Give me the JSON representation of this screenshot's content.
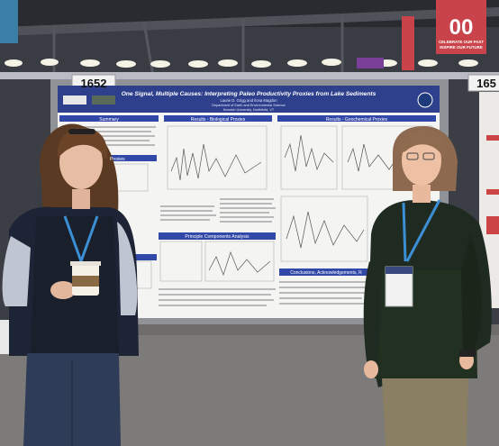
{
  "poster": {
    "booth_left": "1652",
    "booth_right": "165",
    "title": "One Signal, Multiple Causes: Interpreting Paleo Productivity Proxies from Lake Sediments",
    "authors": "Laurie D. Grigg and Ilona Magdon",
    "department": "Department of Earth and Environmental Science",
    "institution": "Norwich University, Northfield, VT",
    "sections": {
      "summary": "Summary",
      "bio": "Results - Biological Proxies",
      "geo": "Results - Geochemical Proxies",
      "proxies": "Proxies",
      "pca": "Principle Components Analysis",
      "conclusions": "Conclusions, Acknowledgements, R"
    }
  },
  "banner": {
    "number": "00",
    "line1": "CELEBRATE OUR PAST",
    "line2": "INSPIRE OUR FUTURE"
  },
  "colors": {
    "poster_header": "#2e3f8c",
    "section_bar": "#3148a8",
    "banner": "#c9444a",
    "ceiling": "#3a3c44",
    "carpet": "#7d7b7a"
  }
}
